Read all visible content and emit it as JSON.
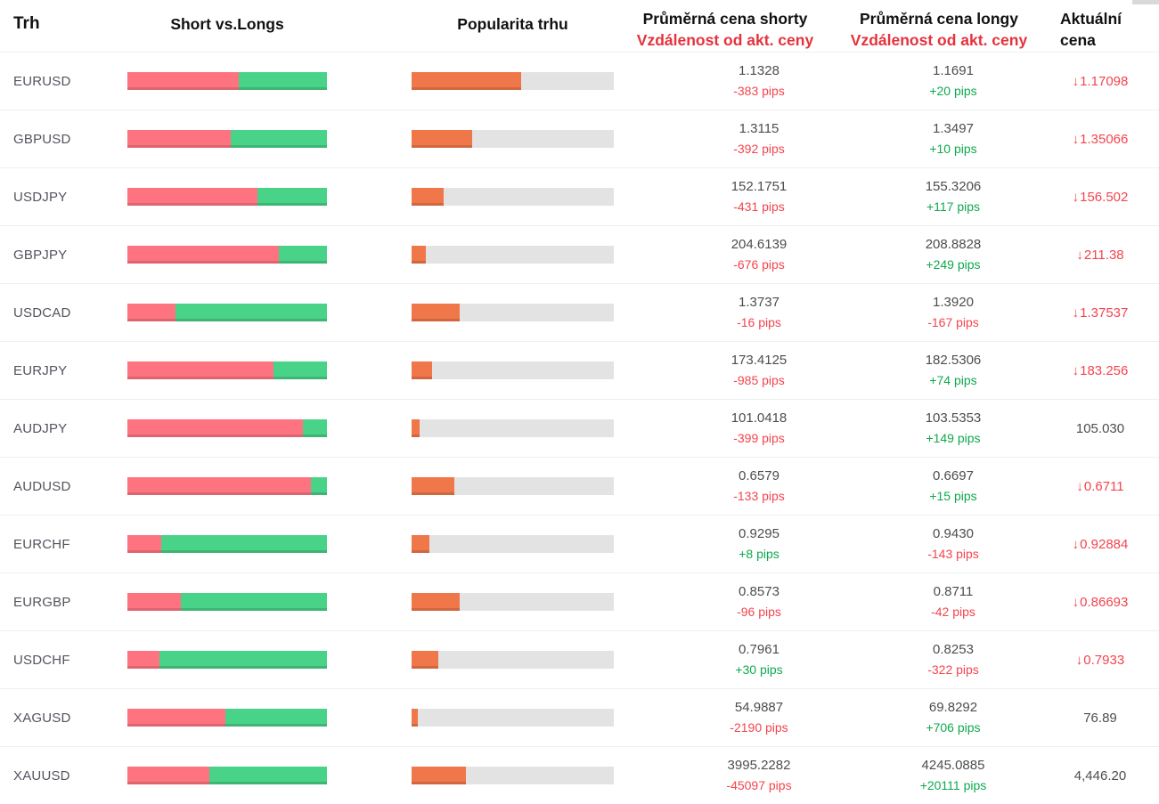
{
  "header": {
    "trh": "Trh",
    "short_vs_longs": "Short vs.Longs",
    "popularita": "Popularita trhu",
    "shorts_line1": "Průměrná cena shorty",
    "shorts_line2": "Vzdálenost od akt. ceny",
    "longs_line1": "Průměrná cena longy",
    "longs_line2": "Vzdálenost od akt. ceny",
    "current_line1": "Aktuální",
    "current_line2": "cena"
  },
  "colors": {
    "short_bar": "#fd7380",
    "long_bar": "#49d389",
    "popularity_bar": "#ef774a",
    "popularity_track": "#e3e3e3",
    "red_text": "#f4444e",
    "green_text": "#0ea94e",
    "header_red": "#e5323c",
    "dark_text": "#4d4d4d"
  },
  "rows": [
    {
      "market": "EURUSD",
      "short_pct": 56,
      "popularity_pct": 54,
      "short_price": "1.1328",
      "short_pips": "-383 pips",
      "long_price": "1.1691",
      "long_pips": "+20 pips",
      "current": "1.17098",
      "arrow": true
    },
    {
      "market": "GBPUSD",
      "short_pct": 52,
      "popularity_pct": 30,
      "short_price": "1.3115",
      "short_pips": "-392 pips",
      "long_price": "1.3497",
      "long_pips": "+10 pips",
      "current": "1.35066",
      "arrow": true
    },
    {
      "market": "USDJPY",
      "short_pct": 65,
      "popularity_pct": 16,
      "short_price": "152.1751",
      "short_pips": "-431 pips",
      "long_price": "155.3206",
      "long_pips": "+117 pips",
      "current": "156.502",
      "arrow": true
    },
    {
      "market": "GBPJPY",
      "short_pct": 76,
      "popularity_pct": 7,
      "short_price": "204.6139",
      "short_pips": "-676 pips",
      "long_price": "208.8828",
      "long_pips": "+249 pips",
      "current": "211.38",
      "arrow": true
    },
    {
      "market": "USDCAD",
      "short_pct": 24,
      "popularity_pct": 24,
      "short_price": "1.3737",
      "short_pips": "-16 pips",
      "long_price": "1.3920",
      "long_pips": "-167 pips",
      "current": "1.37537",
      "arrow": true
    },
    {
      "market": "EURJPY",
      "short_pct": 73,
      "popularity_pct": 10,
      "short_price": "173.4125",
      "short_pips": "-985 pips",
      "long_price": "182.5306",
      "long_pips": "+74 pips",
      "current": "183.256",
      "arrow": true
    },
    {
      "market": "AUDJPY",
      "short_pct": 88,
      "popularity_pct": 4,
      "short_price": "101.0418",
      "short_pips": "-399 pips",
      "long_price": "103.5353",
      "long_pips": "+149 pips",
      "current": "105.030",
      "arrow": false
    },
    {
      "market": "AUDUSD",
      "short_pct": 92,
      "popularity_pct": 21,
      "short_price": "0.6579",
      "short_pips": "-133 pips",
      "long_price": "0.6697",
      "long_pips": "+15 pips",
      "current": "0.6711",
      "arrow": true
    },
    {
      "market": "EURCHF",
      "short_pct": 17,
      "popularity_pct": 9,
      "short_price": "0.9295",
      "short_pips": "+8 pips",
      "long_price": "0.9430",
      "long_pips": "-143 pips",
      "current": "0.92884",
      "arrow": true
    },
    {
      "market": "EURGBP",
      "short_pct": 27,
      "popularity_pct": 24,
      "short_price": "0.8573",
      "short_pips": "-96 pips",
      "long_price": "0.8711",
      "long_pips": "-42 pips",
      "current": "0.86693",
      "arrow": true
    },
    {
      "market": "USDCHF",
      "short_pct": 16,
      "popularity_pct": 13,
      "short_price": "0.7961",
      "short_pips": "+30 pips",
      "long_price": "0.8253",
      "long_pips": "-322 pips",
      "current": "0.7933",
      "arrow": true
    },
    {
      "market": "XAGUSD",
      "short_pct": 49,
      "popularity_pct": 3,
      "short_price": "54.9887",
      "short_pips": "-2190 pips",
      "long_price": "69.8292",
      "long_pips": "+706 pips",
      "current": "76.89",
      "arrow": false
    },
    {
      "market": "XAUUSD",
      "short_pct": 41,
      "popularity_pct": 27,
      "short_price": "3995.2282",
      "short_pips": "-45097 pips",
      "long_price": "4245.0885",
      "long_pips": "+20111 pips",
      "current": "4,446.20",
      "arrow": false
    }
  ],
  "icons": {
    "down_arrow": "↓"
  }
}
